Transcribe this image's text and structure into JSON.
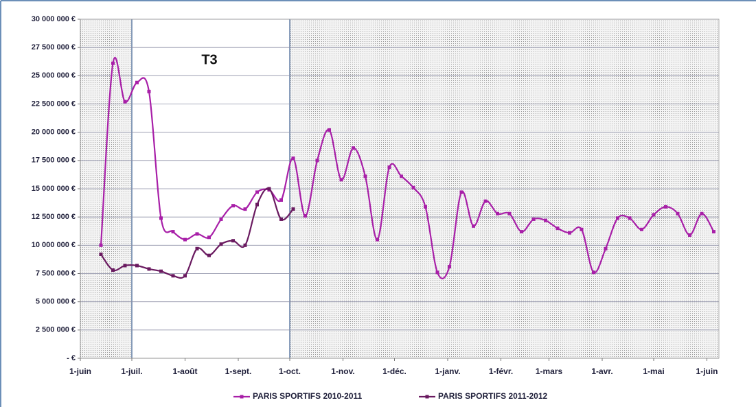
{
  "chart_data": {
    "type": "line",
    "annotation": "T3",
    "xlim": [
      0,
      372
    ],
    "xticks": [
      {
        "value": 0,
        "label": "1-juin"
      },
      {
        "value": 30,
        "label": "1-juil."
      },
      {
        "value": 61,
        "label": "1-août"
      },
      {
        "value": 92,
        "label": "1-sept."
      },
      {
        "value": 122,
        "label": "1-oct."
      },
      {
        "value": 153,
        "label": "1-nov."
      },
      {
        "value": 183,
        "label": "1-déc."
      },
      {
        "value": 214,
        "label": "1-janv."
      },
      {
        "value": 245,
        "label": "1-févr."
      },
      {
        "value": 273,
        "label": "1-mars"
      },
      {
        "value": 304,
        "label": "1-avr."
      },
      {
        "value": 334,
        "label": "1-mai"
      },
      {
        "value": 365,
        "label": "1-juin"
      }
    ],
    "shaded_ranges": [
      [
        0,
        30
      ],
      [
        122,
        372
      ]
    ],
    "ylim": [
      0,
      30000000
    ],
    "yticks": [
      {
        "value": 0,
        "label": "-   €"
      },
      {
        "value": 2500000,
        "label": "2 500 000 €"
      },
      {
        "value": 5000000,
        "label": "5 000 000 €"
      },
      {
        "value": 7500000,
        "label": "7 500 000 €"
      },
      {
        "value": 10000000,
        "label": "10 000 000 €"
      },
      {
        "value": 12500000,
        "label": "12 500 000 €"
      },
      {
        "value": 15000000,
        "label": "15 000 000 €"
      },
      {
        "value": 17500000,
        "label": "17 500 000 €"
      },
      {
        "value": 20000000,
        "label": "20 000 000 €"
      },
      {
        "value": 22500000,
        "label": "22 500 000 €"
      },
      {
        "value": 25000000,
        "label": "25 000 000 €"
      },
      {
        "value": 27500000,
        "label": "27 500 000 €"
      },
      {
        "value": 30000000,
        "label": "30 000 000 €"
      }
    ],
    "grid": true,
    "smooth": true,
    "legend": "bottom",
    "series": [
      {
        "name": "PARIS SPORTIFS 2010-2011",
        "color": "#a81fa8",
        "x": [
          12,
          19,
          26,
          33,
          40,
          47,
          54,
          61,
          68,
          75,
          82,
          89,
          96,
          103,
          110,
          117,
          124,
          131,
          138,
          145,
          152,
          159,
          166,
          173,
          180,
          187,
          194,
          201,
          208,
          215,
          222,
          229,
          236,
          243,
          250,
          257,
          264,
          271,
          278,
          285,
          292,
          299,
          306,
          313,
          320,
          327,
          334,
          341,
          348,
          355,
          362,
          369
        ],
        "values": [
          10000000,
          26100000,
          22700000,
          24400000,
          23600000,
          12400000,
          11200000,
          10500000,
          11000000,
          10700000,
          12300000,
          13500000,
          13200000,
          14700000,
          14900000,
          14000000,
          17700000,
          12600000,
          17500000,
          20200000,
          15800000,
          18600000,
          16100000,
          10500000,
          16900000,
          16100000,
          15100000,
          13400000,
          7600000,
          8100000,
          14700000,
          11700000,
          13900000,
          12800000,
          12800000,
          11200000,
          12300000,
          12200000,
          11500000,
          11100000,
          11400000,
          7600000,
          9700000,
          12400000,
          12400000,
          11400000,
          12700000,
          13400000,
          12800000,
          10900000,
          12800000,
          11200000
        ]
      },
      {
        "name": "PARIS SPORTIFS 2011-2012",
        "color": "#6a1a60",
        "x": [
          12,
          19,
          26,
          33,
          40,
          47,
          54,
          61,
          68,
          75,
          82,
          89,
          96,
          103,
          110,
          117,
          124
        ],
        "values": [
          9200000,
          7800000,
          8200000,
          8200000,
          7900000,
          7700000,
          7300000,
          7300000,
          9700000,
          9100000,
          10100000,
          10400000,
          10000000,
          13600000,
          15000000,
          12300000,
          13200000
        ]
      }
    ]
  }
}
